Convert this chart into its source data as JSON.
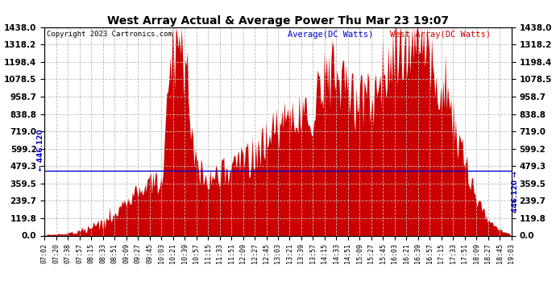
{
  "title": "West Array Actual & Average Power Thu Mar 23 19:07",
  "copyright": "Copyright 2023 Cartronics.com",
  "legend_average": "Average(DC Watts)",
  "legend_west": "West Array(DC Watts)",
  "average_value": 446.12,
  "ymax": 1438.0,
  "yticks": [
    0.0,
    119.8,
    239.7,
    359.5,
    479.3,
    599.2,
    719.0,
    838.8,
    958.7,
    1078.5,
    1198.4,
    1318.2,
    1438.0
  ],
  "bg_color": "#ffffff",
  "fill_color": "#cc0000",
  "avg_line_color": "#0000cc",
  "grid_color": "#bbbbbb",
  "title_color": "#000000",
  "copyright_color": "#000000",
  "legend_avg_color": "#0000cc",
  "legend_west_color": "#cc0000",
  "x_tick_labels": [
    "07:02",
    "07:20",
    "07:38",
    "07:57",
    "08:15",
    "08:33",
    "08:51",
    "09:09",
    "09:27",
    "09:45",
    "10:03",
    "10:21",
    "10:39",
    "10:57",
    "11:15",
    "11:33",
    "11:51",
    "12:09",
    "12:27",
    "12:45",
    "13:03",
    "13:21",
    "13:39",
    "13:57",
    "14:15",
    "14:33",
    "14:51",
    "15:09",
    "15:27",
    "15:45",
    "16:03",
    "16:21",
    "16:39",
    "16:57",
    "17:15",
    "17:33",
    "17:51",
    "18:09",
    "18:27",
    "18:45",
    "19:03"
  ],
  "key_values": [
    5,
    8,
    15,
    30,
    60,
    100,
    150,
    220,
    300,
    350,
    380,
    1350,
    1200,
    480,
    380,
    430,
    470,
    500,
    560,
    700,
    760,
    820,
    870,
    900,
    1050,
    1150,
    1000,
    900,
    980,
    1100,
    1200,
    1400,
    1438,
    1320,
    1100,
    820,
    500,
    250,
    100,
    40,
    8
  ]
}
